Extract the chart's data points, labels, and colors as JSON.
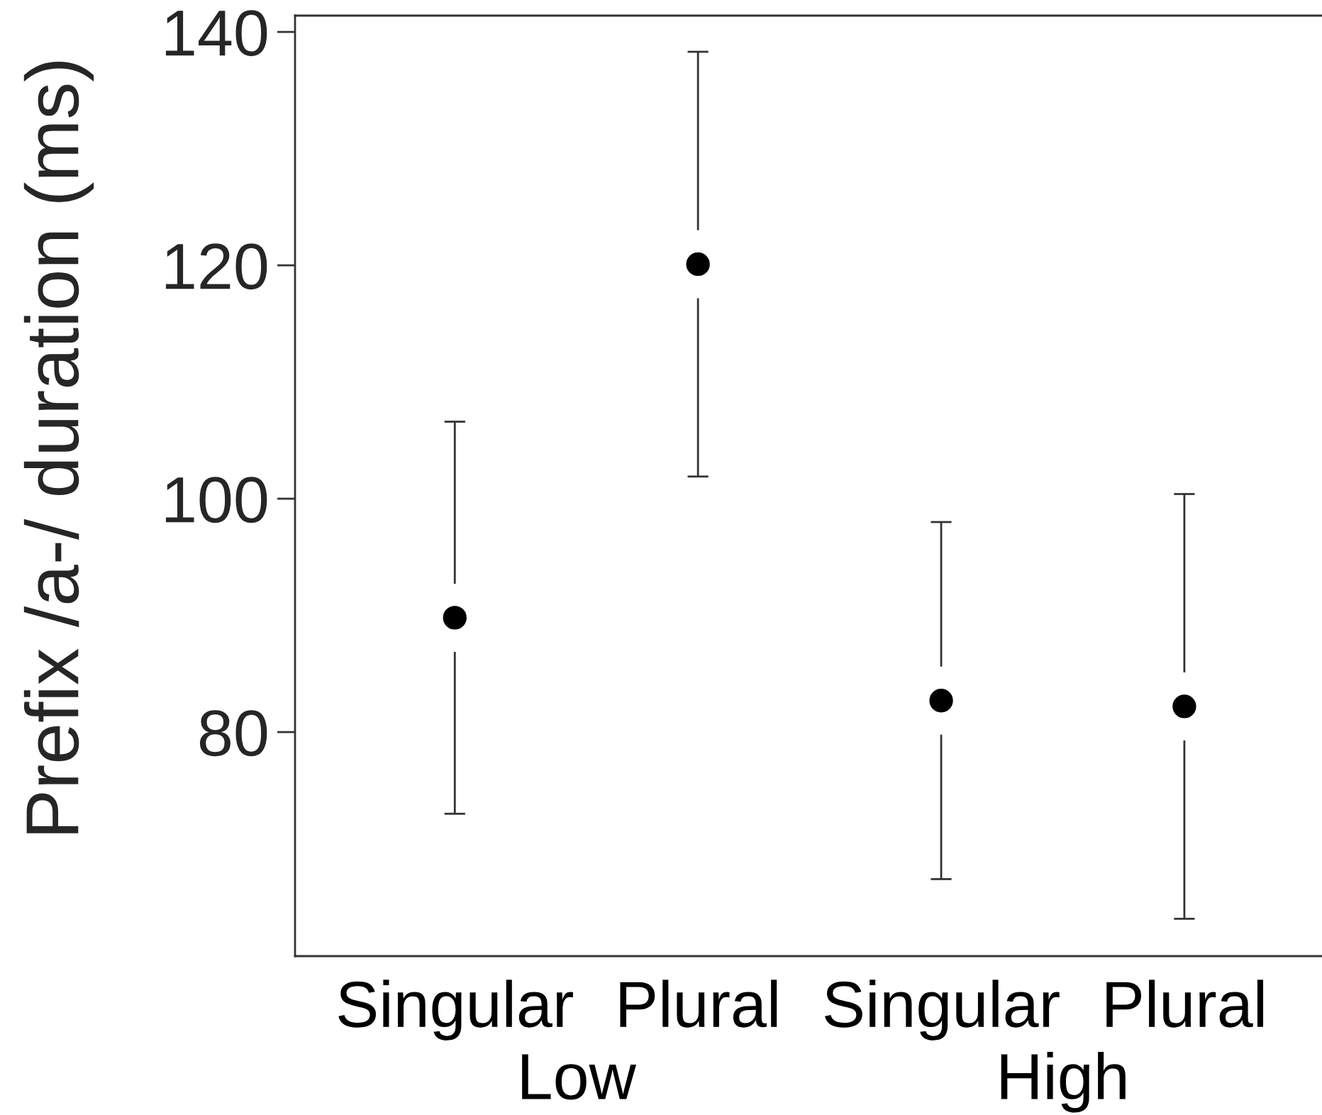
{
  "chart_data": {
    "type": "scatter",
    "ylabel": "Prefix /a-/ duration (ms)",
    "categories": [
      "Singular",
      "Plural",
      "Singular",
      "Plural"
    ],
    "annotations": [
      "Low",
      "High"
    ],
    "series": [
      {
        "color": "#000000",
        "values": [
          89.8,
          120.1,
          82.7,
          82.2
        ],
        "errors": [
          16.8,
          18.2,
          15.3,
          18.2
        ]
      }
    ],
    "ylim": [
      60.8,
      141.4
    ],
    "yticks": [
      80,
      100,
      120,
      140
    ],
    "marker": "circle"
  }
}
